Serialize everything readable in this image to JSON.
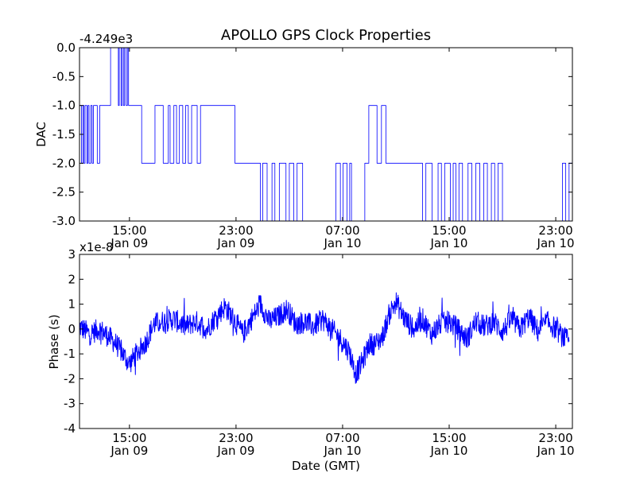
{
  "figure": {
    "title": "APOLLO GPS Clock Properties"
  },
  "chart_data": [
    {
      "type": "line",
      "ylabel": "DAC",
      "xlabel": "",
      "offset_label": "-4.249e3",
      "ylim": [
        -3.0,
        0.0
      ],
      "yticks": [
        0.0,
        -0.5,
        -1.0,
        -1.5,
        -2.0,
        -2.5,
        -3.0
      ],
      "ytick_labels": [
        "0.0",
        "-0.5",
        "-1.0",
        "-1.5",
        "-2.0",
        "-2.5",
        "-3.0"
      ],
      "xlim": [
        "2011-01-09T11:15",
        "2011-01-11T00:15"
      ],
      "xticks": [
        "2011-01-09T15:00",
        "2011-01-09T23:00",
        "2011-01-10T07:00",
        "2011-01-10T15:00",
        "2011-01-10T23:00"
      ],
      "xtick_labels": [
        [
          "15:00",
          "Jan 09"
        ],
        [
          "23:00",
          "Jan 09"
        ],
        [
          "07:00",
          "Jan 10"
        ],
        [
          "15:00",
          "Jan 10"
        ],
        [
          "23:00",
          "Jan 10"
        ]
      ],
      "line_color": "#0000ff",
      "series": [
        {
          "x": [
            "2011-01-09T11:15",
            "2011-01-09T11:24",
            "2011-01-09T11:30",
            "2011-01-09T11:35",
            "2011-01-09T11:40",
            "2011-01-09T11:48",
            "2011-01-09T11:53",
            "2011-01-09T11:58",
            "2011-01-09T12:06",
            "2011-01-09T12:12",
            "2011-01-09T12:18",
            "2011-01-09T12:35",
            "2011-01-09T12:46",
            "2011-01-09T13:00",
            "2011-01-09T13:35",
            "2011-01-09T14:10",
            "2011-01-09T14:14",
            "2011-01-09T14:22",
            "2011-01-09T14:27",
            "2011-01-09T14:33",
            "2011-01-09T14:38",
            "2011-01-09T14:45",
            "2011-01-09T14:51",
            "2011-01-09T14:56",
            "2011-01-09T15:05",
            "2011-01-09T15:20",
            "2011-01-09T15:55",
            "2011-01-09T16:55",
            "2011-01-09T17:32",
            "2011-01-09T17:55",
            "2011-01-09T18:03",
            "2011-01-09T18:20",
            "2011-01-09T18:32",
            "2011-01-09T18:45",
            "2011-01-09T19:00",
            "2011-01-09T19:13",
            "2011-01-09T19:25",
            "2011-01-09T19:40",
            "2011-01-09T20:05",
            "2011-01-09T20:20",
            "2011-01-09T22:55",
            "2011-01-09T23:05",
            "2011-01-10T00:50",
            "2011-01-10T01:00",
            "2011-01-10T01:20",
            "2011-01-10T01:42",
            "2011-01-10T01:55",
            "2011-01-10T02:15",
            "2011-01-10T02:45",
            "2011-01-10T03:00",
            "2011-01-10T03:20",
            "2011-01-10T03:35",
            "2011-01-10T04:00",
            "2011-01-10T06:20",
            "2011-01-10T06:30",
            "2011-01-10T06:50",
            "2011-01-10T07:02",
            "2011-01-10T07:20",
            "2011-01-10T07:32",
            "2011-01-10T07:40",
            "2011-01-10T08:40",
            "2011-01-10T08:58",
            "2011-01-10T09:35",
            "2011-01-10T09:55",
            "2011-01-10T10:15",
            "2011-01-10T11:20",
            "2011-01-10T13:00",
            "2011-01-10T13:15",
            "2011-01-10T13:43",
            "2011-01-10T14:10",
            "2011-01-10T14:25",
            "2011-01-10T14:40",
            "2011-01-10T15:05",
            "2011-01-10T15:18",
            "2011-01-10T15:30",
            "2011-01-10T15:44",
            "2011-01-10T16:00",
            "2011-01-10T16:25",
            "2011-01-10T16:42",
            "2011-01-10T17:00",
            "2011-01-10T17:18",
            "2011-01-10T17:36",
            "2011-01-10T17:52",
            "2011-01-10T18:10",
            "2011-01-10T18:25",
            "2011-01-10T18:40",
            "2011-01-10T19:00",
            "2011-01-10T19:20",
            "2011-01-10T23:30",
            "2011-01-10T23:45",
            "2011-01-11T00:00"
          ],
          "y": [
            -1.0,
            -2.0,
            -1.0,
            -2.0,
            -1.0,
            -2.0,
            -1.0,
            -2.0,
            -1.0,
            -2.0,
            -1.0,
            -2.0,
            -1.0,
            -1.0,
            0.0,
            -1.0,
            0.0,
            -1.0,
            0.0,
            -1.0,
            0.0,
            -1.0,
            0.0,
            -1.0,
            -1.0,
            -1.0,
            -2.0,
            -1.0,
            -2.0,
            -1.0,
            -2.0,
            -1.0,
            -2.0,
            -1.0,
            -2.0,
            -1.0,
            -2.0,
            -1.0,
            -2.0,
            -1.0,
            -2.0,
            -2.0,
            -3.0,
            -2.0,
            -3.0,
            -2.0,
            -3.0,
            -2.0,
            -3.0,
            -2.0,
            -3.0,
            -2.0,
            -3.0,
            -3.0,
            -2.0,
            -3.0,
            -2.0,
            -3.0,
            -2.0,
            -3.0,
            -2.0,
            -1.0,
            -2.0,
            -1.0,
            -2.0,
            -2.0,
            -3.0,
            -2.0,
            -3.0,
            -2.0,
            -3.0,
            -2.0,
            -3.0,
            -2.0,
            -3.0,
            -2.0,
            -3.0,
            -2.0,
            -3.0,
            -2.0,
            -3.0,
            -2.0,
            -3.0,
            -2.0,
            -3.0,
            -2.0,
            -3.0,
            -3.0,
            -2.0,
            -3.0,
            -2.0
          ]
        }
      ]
    },
    {
      "type": "line",
      "ylabel": "Phase (s)",
      "xlabel": "Date (GMT)",
      "offset_label": "x1e-8",
      "ylim": [
        -4,
        3
      ],
      "yticks": [
        3,
        2,
        1,
        0,
        -1,
        -2,
        -3,
        -4
      ],
      "ytick_labels": [
        "3",
        "2",
        "1",
        "0",
        "-1",
        "-2",
        "-3",
        "-4"
      ],
      "xlim": [
        "2011-01-09T11:15",
        "2011-01-11T00:15"
      ],
      "xticks": [
        "2011-01-09T15:00",
        "2011-01-09T23:00",
        "2011-01-10T07:00",
        "2011-01-10T15:00",
        "2011-01-10T23:00"
      ],
      "xtick_labels": [
        [
          "15:00",
          "Jan 09"
        ],
        [
          "23:00",
          "Jan 09"
        ],
        [
          "07:00",
          "Jan 10"
        ],
        [
          "15:00",
          "Jan 10"
        ],
        [
          "23:00",
          "Jan 10"
        ]
      ],
      "line_color": "#0000ff",
      "series": [
        {
          "x": [
            "2011-01-09T11:15",
            "2011-01-09T12:00",
            "2011-01-09T12:45",
            "2011-01-09T13:25",
            "2011-01-09T14:00",
            "2011-01-09T14:30",
            "2011-01-09T15:00",
            "2011-01-09T15:30",
            "2011-01-09T16:10",
            "2011-01-09T16:50",
            "2011-01-09T17:30",
            "2011-01-09T18:20",
            "2011-01-09T19:10",
            "2011-01-09T20:00",
            "2011-01-09T20:50",
            "2011-01-09T21:30",
            "2011-01-09T22:10",
            "2011-01-09T22:50",
            "2011-01-09T23:30",
            "2011-01-10T00:10",
            "2011-01-10T00:50",
            "2011-01-10T01:30",
            "2011-01-10T02:10",
            "2011-01-10T02:50",
            "2011-01-10T03:30",
            "2011-01-10T04:10",
            "2011-01-10T04:50",
            "2011-01-10T05:30",
            "2011-01-10T06:10",
            "2011-01-10T06:50",
            "2011-01-10T07:30",
            "2011-01-10T08:00",
            "2011-01-10T08:30",
            "2011-01-10T09:00",
            "2011-01-10T09:30",
            "2011-01-10T10:00",
            "2011-01-10T10:30",
            "2011-01-10T11:00",
            "2011-01-10T11:40",
            "2011-01-10T12:20",
            "2011-01-10T13:00",
            "2011-01-10T13:40",
            "2011-01-10T14:20",
            "2011-01-10T15:00",
            "2011-01-10T15:40",
            "2011-01-10T16:20",
            "2011-01-10T17:00",
            "2011-01-10T17:40",
            "2011-01-10T18:20",
            "2011-01-10T19:00",
            "2011-01-10T19:40",
            "2011-01-10T20:20",
            "2011-01-10T21:00",
            "2011-01-10T21:40",
            "2011-01-10T22:20",
            "2011-01-10T23:00",
            "2011-01-10T23:30",
            "2011-01-11T00:00"
          ],
          "y": [
            0.1,
            -0.2,
            0.0,
            -0.3,
            -0.6,
            -1.0,
            -1.4,
            -1.0,
            -0.6,
            0.2,
            0.3,
            0.4,
            0.1,
            0.3,
            0.0,
            0.5,
            0.9,
            0.4,
            -0.2,
            0.4,
            1.0,
            0.3,
            0.5,
            0.8,
            0.2,
            0.3,
            0.1,
            0.4,
            0.0,
            -0.4,
            -0.9,
            -1.8,
            -1.3,
            -0.6,
            -0.6,
            -0.3,
            0.6,
            1.1,
            0.4,
            0.0,
            0.4,
            -0.2,
            0.2,
            0.3,
            0.0,
            -0.4,
            0.3,
            0.1,
            0.3,
            -0.1,
            0.4,
            0.0,
            0.5,
            -0.1,
            0.3,
            0.0,
            -0.3,
            -0.5
          ]
        }
      ]
    }
  ]
}
